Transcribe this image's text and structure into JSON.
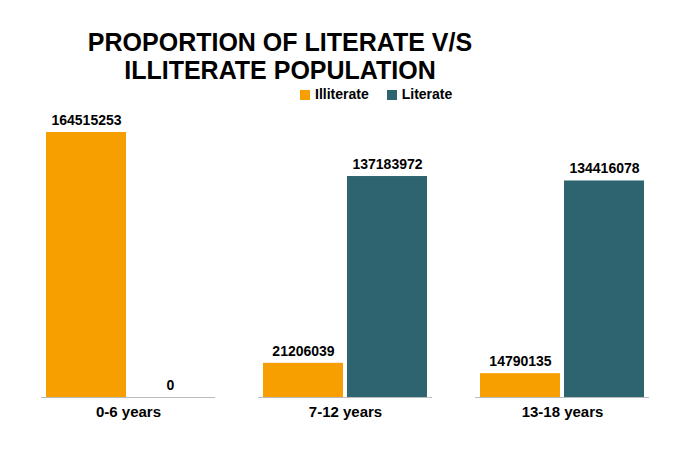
{
  "chart_data": {
    "type": "bar",
    "title": "PROPORTION OF LITERATE V/S ILLITERATE  POPULATION",
    "categories": [
      "0-6 years",
      "7-12 years",
      "13-18 years"
    ],
    "series": [
      {
        "name": "Illiterate",
        "color": "#f79e00",
        "values": [
          164515253,
          21206039,
          14790135
        ]
      },
      {
        "name": "Literate",
        "color": "#2e6370",
        "values": [
          0,
          137183972,
          134416078
        ]
      }
    ],
    "legend": "top",
    "data_labels": true,
    "tick_labels": "x",
    "grid": false
  }
}
